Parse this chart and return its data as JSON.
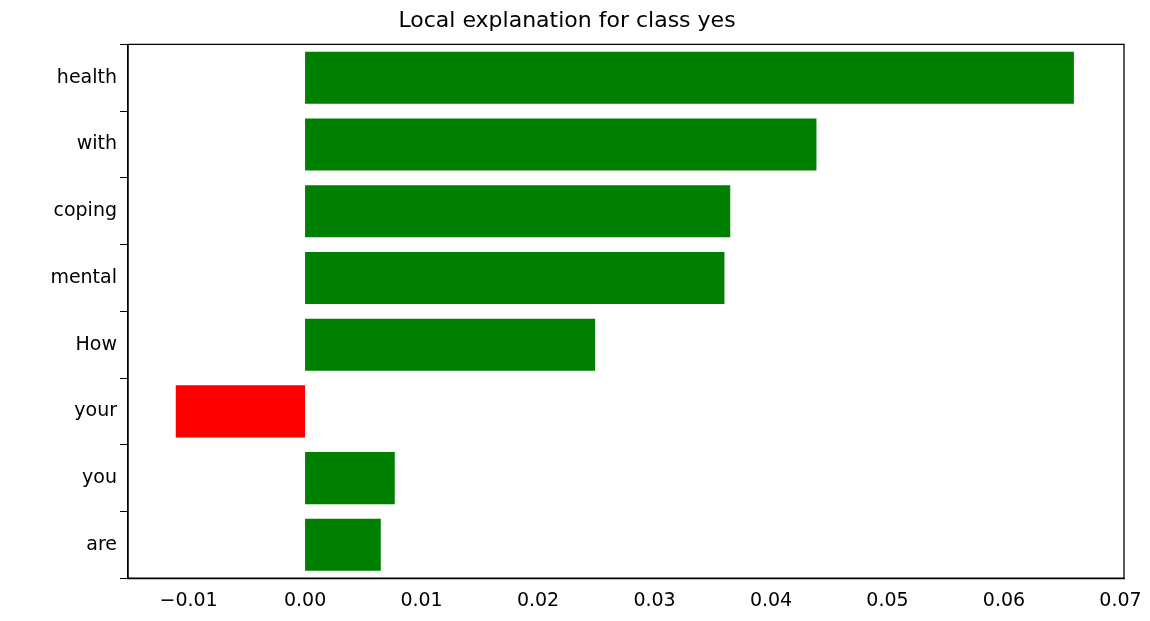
{
  "chart_data": {
    "type": "bar",
    "orientation": "horizontal",
    "title": "Local explanation for class yes",
    "categories": [
      "health",
      "with",
      "coping",
      "mental",
      "How",
      "your",
      "you",
      "are"
    ],
    "values": [
      0.066,
      0.0439,
      0.0365,
      0.036,
      0.0249,
      -0.0111,
      0.0077,
      0.0065
    ],
    "colors": [
      "#008000",
      "#008000",
      "#008000",
      "#008000",
      "#008000",
      "#ff0000",
      "#008000",
      "#008000"
    ],
    "xlim": [
      -0.0152,
      0.0703
    ],
    "xticks": [
      {
        "value": -0.01,
        "label": "−0.01"
      },
      {
        "value": 0,
        "label": "0.00"
      },
      {
        "value": 0.01,
        "label": "0.01"
      },
      {
        "value": 0.02,
        "label": "0.02"
      },
      {
        "value": 0.03,
        "label": "0.03"
      },
      {
        "value": 0.04,
        "label": "0.04"
      },
      {
        "value": 0.05,
        "label": "0.05"
      },
      {
        "value": 0.06,
        "label": "0.06"
      },
      {
        "value": 0.07,
        "label": "0.07"
      }
    ],
    "grid": false,
    "legend": false
  }
}
